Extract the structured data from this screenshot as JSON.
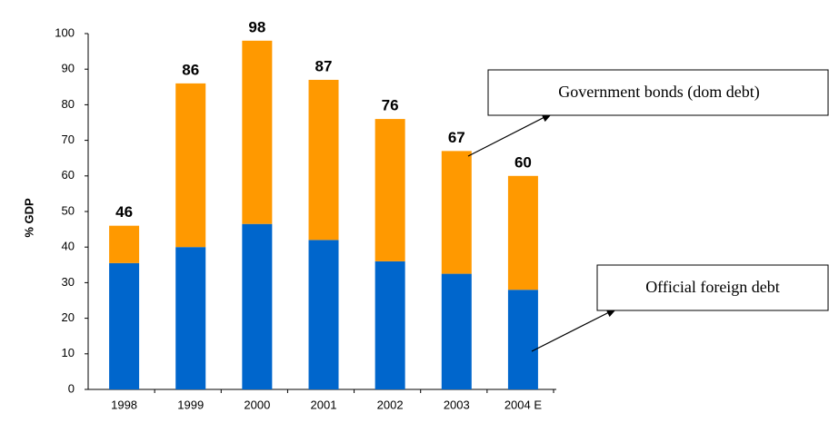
{
  "chart_data": {
    "type": "stacked-bar",
    "y_label": "% GDP",
    "categories": [
      "1998",
      "1999",
      "2000",
      "2001",
      "2002",
      "2003",
      "2004 E"
    ],
    "series": [
      {
        "name": "Official foreign debt",
        "color": "#0066cc",
        "values": [
          35.5,
          40,
          46.5,
          42,
          36,
          32.5,
          28
        ]
      },
      {
        "name": "Government bonds (dom debt)",
        "color": "#ff9900",
        "values": [
          10.5,
          46,
          51.5,
          45,
          40,
          34.5,
          32
        ]
      }
    ],
    "totals": [
      46,
      86,
      98,
      87,
      76,
      67,
      60
    ],
    "ylim": [
      0,
      100
    ],
    "yticks": [
      0,
      10,
      20,
      30,
      40,
      50,
      60,
      70,
      80,
      90,
      100
    ],
    "grid": false
  }
}
